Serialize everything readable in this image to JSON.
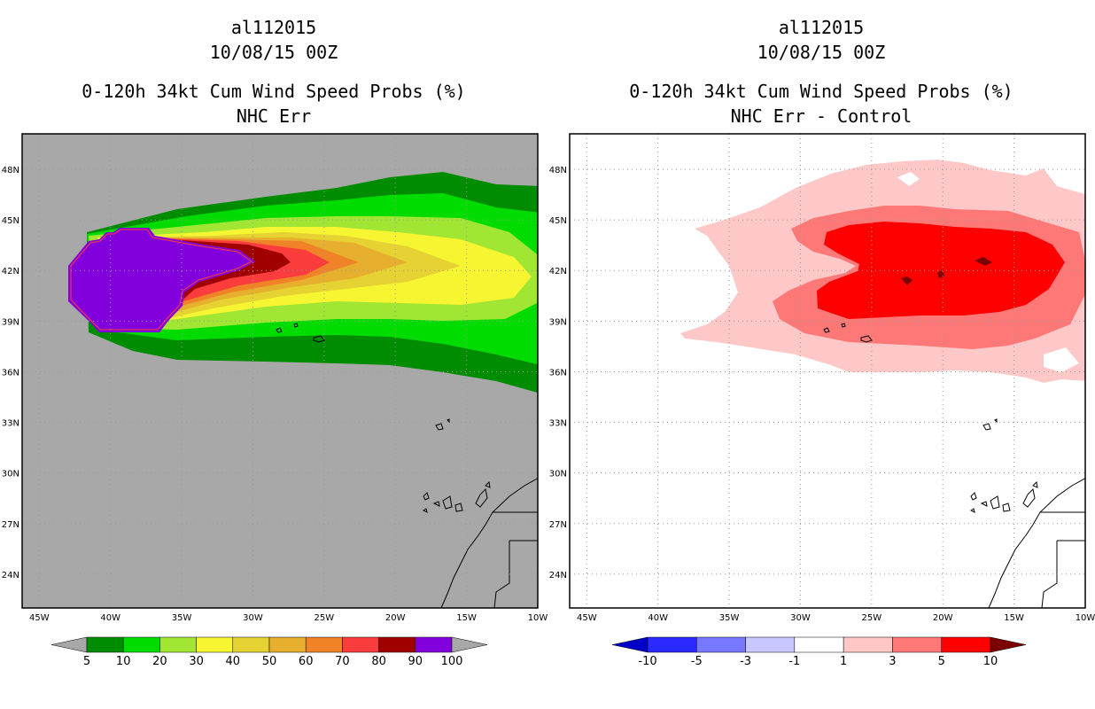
{
  "chart_data": [
    {
      "type": "map",
      "titles": [
        "al112015",
        "10/08/15 00Z",
        "0-120h 34kt Cum Wind Speed Probs (%)",
        "NHC Err"
      ],
      "x_ticks": [
        "45W",
        "40W",
        "35W",
        "30W",
        "25W",
        "20W",
        "15W",
        "10W"
      ],
      "y_ticks": [
        "48N",
        "45N",
        "42N",
        "39N",
        "36N",
        "33N",
        "30N",
        "27N",
        "24N"
      ],
      "lon_range": [
        -46.2,
        -10
      ],
      "lat_range": [
        22,
        50.1
      ],
      "colorbar_labels": [
        "5",
        "10",
        "20",
        "30",
        "40",
        "50",
        "60",
        "70",
        "80",
        "90",
        "100"
      ],
      "colorbar_colors": [
        "#008c00",
        "#00dc00",
        "#a0e632",
        "#f5f532",
        "#e6d232",
        "#e6af2d",
        "#f08228",
        "#fa3c3c",
        "#a00000",
        "#8200dc"
      ],
      "background_color": "#a8a8a8"
    },
    {
      "type": "map",
      "titles": [
        "al112015",
        "10/08/15 00Z",
        "0-120h 34kt Cum Wind Speed Probs (%)",
        "NHC Err - Control"
      ],
      "x_ticks": [
        "45W",
        "40W",
        "35W",
        "30W",
        "25W",
        "20W",
        "15W",
        "10W"
      ],
      "y_ticks": [
        "48N",
        "45N",
        "42N",
        "39N",
        "36N",
        "33N",
        "30N",
        "27N",
        "24N"
      ],
      "lon_range": [
        -46.2,
        -10
      ],
      "lat_range": [
        22,
        50.1
      ],
      "colorbar_labels": [
        "-10",
        "-5",
        "-3",
        "-1",
        "1",
        "3",
        "5",
        "10"
      ],
      "colorbar_colors": [
        "#0000c8",
        "#2828ff",
        "#7878ff",
        "#c8c8ff",
        "#ffffff",
        "#ffc8c8",
        "#ff7878",
        "#ff0000",
        "#7d0000"
      ],
      "background_color": "#ffffff"
    }
  ]
}
